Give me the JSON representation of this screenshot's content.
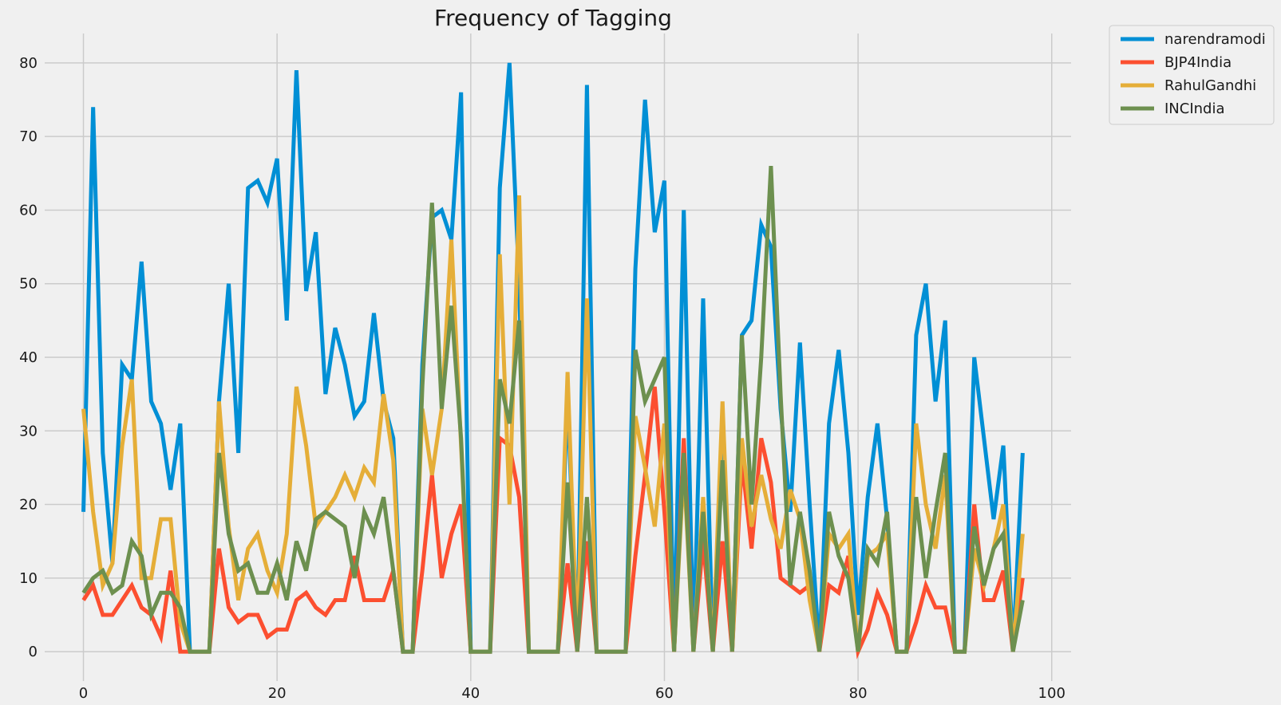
{
  "chart_data": {
    "type": "line",
    "title": "Frequency of Tagging",
    "xlabel": "",
    "ylabel": "",
    "xlim": [
      -4,
      102
    ],
    "ylim": [
      -4,
      84
    ],
    "xticks": [
      0,
      20,
      40,
      60,
      80,
      100
    ],
    "yticks": [
      0,
      10,
      20,
      30,
      40,
      50,
      60,
      70,
      80
    ],
    "grid": true,
    "legend_position": "outside-top-right",
    "series": [
      {
        "name": "narendramodi",
        "color": "#008fd5",
        "values": [
          19,
          74,
          27,
          12,
          39,
          37,
          53,
          34,
          31,
          22,
          31,
          0,
          0,
          0,
          34,
          50,
          27,
          63,
          64,
          61,
          67,
          45,
          79,
          49,
          57,
          35,
          44,
          39,
          32,
          34,
          46,
          34,
          29,
          0,
          0,
          39,
          59,
          60,
          56,
          76,
          0,
          0,
          0,
          63,
          80,
          50,
          0,
          0,
          0,
          0,
          35,
          0,
          77,
          0,
          0,
          0,
          0,
          52,
          75,
          57,
          64,
          0,
          60,
          0,
          48,
          0,
          30,
          0,
          43,
          45,
          58,
          55,
          33,
          19,
          42,
          20,
          0,
          31,
          41,
          27,
          5,
          21,
          31,
          18,
          0,
          0,
          43,
          50,
          34,
          45,
          0,
          0,
          40,
          29,
          18,
          28,
          0,
          27
        ]
      },
      {
        "name": "BJP4India",
        "color": "#fc4f30",
        "values": [
          7,
          9,
          5,
          5,
          7,
          9,
          6,
          5,
          2,
          11,
          0,
          0,
          0,
          0,
          14,
          6,
          4,
          5,
          5,
          2,
          3,
          3,
          7,
          8,
          6,
          5,
          7,
          7,
          13,
          7,
          7,
          7,
          11,
          0,
          0,
          11,
          24,
          10,
          16,
          20,
          0,
          0,
          0,
          29,
          28,
          21,
          0,
          0,
          0,
          0,
          12,
          0,
          15,
          0,
          0,
          0,
          0,
          13,
          24,
          36,
          19,
          0,
          29,
          0,
          15,
          0,
          15,
          0,
          26,
          14,
          29,
          23,
          10,
          9,
          8,
          9,
          0,
          9,
          8,
          13,
          0,
          3,
          8,
          5,
          0,
          0,
          4,
          9,
          6,
          6,
          0,
          0,
          20,
          7,
          7,
          11,
          0,
          10
        ]
      },
      {
        "name": "RahulGandhi",
        "color": "#e5ae38",
        "values": [
          33,
          19,
          9,
          12,
          28,
          37,
          10,
          10,
          18,
          18,
          4,
          0,
          0,
          0,
          34,
          17,
          7,
          14,
          16,
          11,
          8,
          16,
          36,
          28,
          17,
          19,
          21,
          24,
          21,
          25,
          23,
          35,
          26,
          0,
          0,
          33,
          24,
          33,
          56,
          28,
          0,
          0,
          0,
          54,
          20,
          62,
          0,
          0,
          0,
          0,
          38,
          0,
          48,
          0,
          0,
          0,
          0,
          32,
          25,
          17,
          31,
          0,
          25,
          0,
          21,
          0,
          34,
          0,
          29,
          17,
          24,
          18,
          14,
          22,
          18,
          7,
          0,
          16,
          14,
          16,
          0,
          13,
          14,
          16,
          0,
          0,
          31,
          20,
          14,
          24,
          0,
          0,
          14,
          9,
          14,
          20,
          0,
          16
        ]
      },
      {
        "name": "INCIndia",
        "color": "#6d904f",
        "values": [
          8,
          10,
          11,
          8,
          9,
          15,
          13,
          5,
          8,
          8,
          6,
          0,
          0,
          0,
          27,
          16,
          11,
          12,
          8,
          8,
          12,
          7,
          15,
          11,
          18,
          19,
          18,
          17,
          10,
          19,
          16,
          21,
          11,
          0,
          0,
          36,
          61,
          33,
          47,
          29,
          0,
          0,
          0,
          37,
          31,
          45,
          0,
          0,
          0,
          0,
          23,
          0,
          21,
          0,
          0,
          0,
          0,
          41,
          34,
          37,
          40,
          0,
          27,
          0,
          19,
          0,
          26,
          0,
          43,
          20,
          40,
          66,
          35,
          9,
          19,
          11,
          0,
          19,
          13,
          10,
          0,
          14,
          12,
          19,
          0,
          0,
          21,
          10,
          19,
          27,
          0,
          0,
          17,
          9,
          14,
          16,
          0,
          7
        ]
      }
    ]
  }
}
